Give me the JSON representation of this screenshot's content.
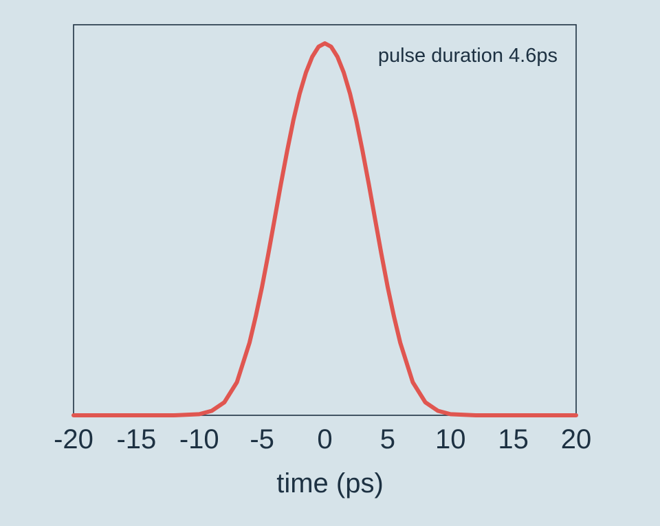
{
  "background_color": "#d6e3e9",
  "chart_data": {
    "type": "line",
    "title": "",
    "annotation": "pulse duration 4.6ps",
    "xlabel": "time (ps)",
    "ylabel": "",
    "xlim": [
      -20,
      20
    ],
    "ylim": [
      0,
      1.05
    ],
    "xticks": [
      -20,
      -15,
      -10,
      -5,
      0,
      5,
      10,
      15,
      20
    ],
    "xtick_labels": [
      "-20",
      "-15",
      "-10",
      "-5",
      "0",
      "5",
      "10",
      "15",
      "20"
    ],
    "grid": false,
    "legend": "none",
    "series": [
      {
        "color": "#e05650",
        "x": [
          -20,
          -18,
          -16,
          -14,
          -12,
          -10,
          -9,
          -8,
          -7,
          -6,
          -5.5,
          -5,
          -4.5,
          -4,
          -3.5,
          -3,
          -2.5,
          -2,
          -1.5,
          -1,
          -0.5,
          0,
          0.5,
          1,
          1.5,
          2,
          2.5,
          3,
          3.5,
          4,
          4.5,
          5,
          5.5,
          6,
          7,
          8,
          9,
          10,
          12,
          14,
          16,
          18,
          20
        ],
        "values": [
          0,
          0,
          0,
          0,
          0,
          0.003,
          0.012,
          0.035,
          0.089,
          0.195,
          0.266,
          0.345,
          0.434,
          0.527,
          0.621,
          0.711,
          0.794,
          0.865,
          0.922,
          0.964,
          0.991,
          1.0,
          0.991,
          0.964,
          0.922,
          0.865,
          0.794,
          0.711,
          0.621,
          0.527,
          0.434,
          0.345,
          0.266,
          0.195,
          0.089,
          0.035,
          0.012,
          0.003,
          0,
          0,
          0,
          0,
          0
        ]
      }
    ]
  },
  "colors": {
    "axis": "#1d3142",
    "text": "#1d3142",
    "line": "#e05650"
  }
}
